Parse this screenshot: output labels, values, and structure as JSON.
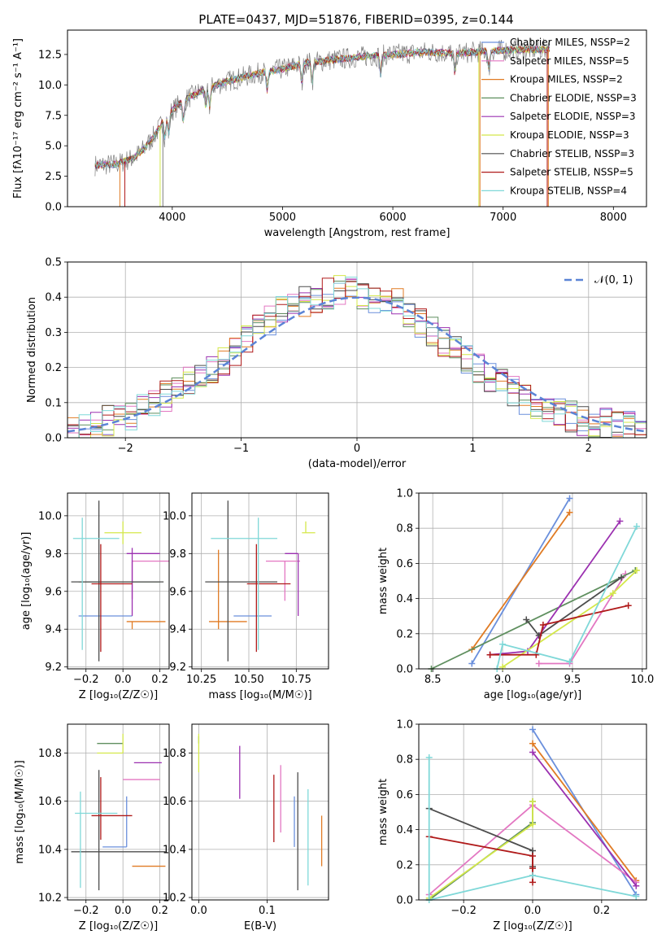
{
  "figure_title": "PLATE=0437, MJD=51876, FIBERID=0395, z=0.144",
  "chart_data": [
    {
      "id": "spectrum",
      "type": "line",
      "xlabel": "wavelength [Angstrom, rest frame]",
      "ylabel": "Flux [f$_\\lambda$10$^{-17}$ erg cm$^{-2}$ s$^{-1}$ A$^{-1}$]",
      "ylabel_text": "Flux [fλ10⁻¹⁷ erg cm⁻² s⁻¹ A⁻¹]",
      "xlim": [
        3050,
        8300
      ],
      "ylim": [
        0,
        14.5
      ],
      "xticks": [
        4000,
        5000,
        6000,
        7000,
        8000
      ],
      "yticks": [
        0.0,
        2.5,
        5.0,
        7.5,
        10.0,
        12.5
      ],
      "legend_loc": "right",
      "observed_color": "#7f7f7f",
      "continuum": {
        "x": [
          3300,
          3500,
          3650,
          3750,
          3850,
          3950,
          4100,
          4300,
          4500,
          4800,
          5000,
          5200,
          5400,
          5700,
          6000,
          6300,
          6600,
          6900,
          7200,
          7400
        ],
        "y": [
          3.4,
          3.5,
          4.0,
          4.8,
          6.0,
          7.5,
          8.7,
          9.7,
          10.3,
          11.0,
          11.3,
          11.8,
          12.0,
          12.3,
          12.5,
          12.7,
          12.6,
          12.8,
          12.9,
          12.9
        ]
      },
      "series": [
        {
          "name": "Chabrier MILES, N$_{SSP}$=2",
          "label": "Chabrier MILES, NSSP=2",
          "color": "#6a8fdc"
        },
        {
          "name": "Salpeter MILES, N$_{SSP}$=5",
          "label": "Salpeter MILES, NSSP=5",
          "color": "#e377c2"
        },
        {
          "name": "Kroupa MILES, N$_{SSP}$=2",
          "label": "Kroupa MILES, NSSP=2",
          "color": "#e07b24"
        },
        {
          "name": "Chabrier ELODIE, N$_{SSP}$=3",
          "label": "Chabrier ELODIE, NSSP=3",
          "color": "#5f8f5f"
        },
        {
          "name": "Salpeter ELODIE, N$_{SSP}$=3",
          "label": "Salpeter ELODIE, NSSP=3",
          "color": "#9b30b0"
        },
        {
          "name": "Kroupa ELODIE, N$_{SSP}$=3",
          "label": "Kroupa ELODIE, NSSP=3",
          "color": "#d4e84a"
        },
        {
          "name": "Chabrier STELIB, N$_{SSP}$=3",
          "label": "Chabrier STELIB, NSSP=3",
          "color": "#4d4d4d"
        },
        {
          "name": "Salpeter STELIB, N$_{SSP}$=5",
          "label": "Salpeter STELIB, NSSP=5",
          "color": "#b01a1a"
        },
        {
          "name": "Kroupa STELIB, N$_{SSP}$=4",
          "label": "Kroupa STELIB, NSSP=4",
          "color": "#7fd8d8"
        }
      ]
    },
    {
      "id": "residuals",
      "type": "histogram",
      "xlabel": "(data-model)/error",
      "ylabel": "Normed distribution",
      "xlim": [
        -2.5,
        2.5
      ],
      "ylim": [
        0,
        0.5
      ],
      "xticks": [
        -2,
        -1,
        0,
        1,
        2
      ],
      "xticklabels": [
        "−2",
        "−1",
        "0",
        "1",
        "2"
      ],
      "yticks": [
        0.0,
        0.1,
        0.2,
        0.3,
        0.4,
        0.5
      ],
      "bin_width": 0.1,
      "bin_start": -2.5,
      "bins": 50,
      "grid": true,
      "reference_curve": {
        "name": "$\\mathcal{N}(0,1)$",
        "label": "𝒩(0, 1)",
        "color": "#5b84d6",
        "style": "dashed"
      },
      "legend_loc": "upper right",
      "approx_mean_hist": [
        0.02,
        0.03,
        0.04,
        0.05,
        0.05,
        0.06,
        0.08,
        0.1,
        0.12,
        0.14,
        0.16,
        0.18,
        0.2,
        0.22,
        0.25,
        0.28,
        0.31,
        0.33,
        0.36,
        0.38,
        0.39,
        0.4,
        0.41,
        0.42,
        0.42,
        0.41,
        0.4,
        0.39,
        0.38,
        0.36,
        0.33,
        0.3,
        0.27,
        0.25,
        0.22,
        0.2,
        0.17,
        0.15,
        0.13,
        0.11,
        0.09,
        0.08,
        0.07,
        0.06,
        0.05,
        0.04,
        0.04,
        0.03,
        0.03,
        0.02
      ]
    },
    {
      "id": "age_vs_Z",
      "type": "errorbar",
      "xlabel": "Z [log$_{10}$(Z/Z$_\\odot$)]",
      "xlabel_text": "Z [log₁₀(Z/Z☉)]",
      "ylabel": "age  [log$_{10}$(age/yr)]",
      "ylabel_text": "age  [log₁₀(age/yr)]",
      "xlim": [
        -0.3,
        0.25
      ],
      "ylim": [
        9.19,
        10.12
      ],
      "xticks": [
        -0.2,
        0.0,
        0.2
      ],
      "xticklabels": [
        "−0.2",
        "0.0",
        "0.2"
      ],
      "yticks": [
        9.2,
        9.4,
        9.6,
        9.8,
        10.0
      ],
      "points": [
        {
          "color": "#6a8fdc",
          "x": 0.02,
          "xerr": [
            0.26,
            0.03
          ],
          "y": 9.47,
          "yerr": [
            0.0,
            0.0
          ]
        },
        {
          "color": "#e377c2",
          "x": 0.05,
          "xerr": [
            0.0,
            0.2
          ],
          "y": 9.76,
          "yerr": [
            0.2,
            0.0
          ]
        },
        {
          "color": "#e07b24",
          "x": 0.05,
          "xerr": [
            0.03,
            0.18
          ],
          "y": 9.44,
          "yerr": [
            0.04,
            0.0
          ]
        },
        {
          "color": "#5f8f5f",
          "x": 0.0,
          "xerr": [
            0.24,
            0.2
          ],
          "y": 9.65,
          "yerr": [
            0.0,
            0.0
          ]
        },
        {
          "color": "#9b30b0",
          "x": 0.05,
          "xerr": [
            0.03,
            0.15
          ],
          "y": 9.8,
          "yerr": [
            0.33,
            0.03
          ]
        },
        {
          "color": "#d4e84a",
          "x": 0.0,
          "xerr": [
            0.1,
            0.1
          ],
          "y": 9.91,
          "yerr": [
            0.06,
            0.06
          ]
        },
        {
          "color": "#4d4d4d",
          "x": -0.13,
          "xerr": [
            0.15,
            0.35
          ],
          "y": 9.65,
          "yerr": [
            0.42,
            0.43
          ]
        },
        {
          "color": "#b01a1a",
          "x": -0.12,
          "xerr": [
            0.05,
            0.17
          ],
          "y": 9.64,
          "yerr": [
            0.36,
            0.21
          ]
        },
        {
          "color": "#7fd8d8",
          "x": -0.22,
          "xerr": [
            0.05,
            0.2
          ],
          "y": 9.88,
          "yerr": [
            0.59,
            0.11
          ]
        }
      ]
    },
    {
      "id": "age_vs_mass",
      "type": "errorbar",
      "xlabel": "mass [log$_{10}$(M/M$_\\odot$)]",
      "xlabel_text": "mass [log₁₀(M/M☉)]",
      "ylabel": "",
      "xlim": [
        10.2,
        10.92
      ],
      "ylim": [
        9.19,
        10.12
      ],
      "xticks": [
        10.25,
        10.5,
        10.75
      ],
      "xticklabels": [
        "10.25",
        "10.50",
        "10.75"
      ],
      "yticks": [
        9.2,
        9.4,
        9.6,
        9.8,
        10.0
      ],
      "points": [
        {
          "color": "#6a8fdc",
          "x": 10.42,
          "xerr": [
            0.0,
            0.2
          ],
          "y": 9.47,
          "yerr": [
            0.0,
            0.0
          ]
        },
        {
          "color": "#e377c2",
          "x": 10.69,
          "xerr": [
            0.1,
            0.08
          ],
          "y": 9.76,
          "yerr": [
            0.21,
            0.0
          ]
        },
        {
          "color": "#e07b24",
          "x": 10.34,
          "xerr": [
            0.05,
            0.15
          ],
          "y": 9.44,
          "yerr": [
            0.04,
            0.38
          ]
        },
        {
          "color": "#5f8f5f",
          "x": 10.84,
          "xerr": [
            0.0,
            0.0
          ],
          "y": 9.91,
          "yerr": [
            0.0,
            0.0
          ]
        },
        {
          "color": "#9b30b0",
          "x": 10.76,
          "xerr": [
            0.07,
            0.0
          ],
          "y": 9.8,
          "yerr": [
            0.33,
            0.0
          ]
        },
        {
          "color": "#d4e84a",
          "x": 10.8,
          "xerr": [
            0.02,
            0.05
          ],
          "y": 9.91,
          "yerr": [
            0.0,
            0.06
          ]
        },
        {
          "color": "#4d4d4d",
          "x": 10.39,
          "xerr": [
            0.12,
            0.26
          ],
          "y": 9.65,
          "yerr": [
            0.42,
            0.43
          ]
        },
        {
          "color": "#b01a1a",
          "x": 10.54,
          "xerr": [
            0.05,
            0.18
          ],
          "y": 9.64,
          "yerr": [
            0.36,
            0.21
          ]
        },
        {
          "color": "#7fd8d8",
          "x": 10.55,
          "xerr": [
            0.25,
            0.1
          ],
          "y": 9.88,
          "yerr": [
            0.59,
            0.11
          ]
        }
      ]
    },
    {
      "id": "weight_vs_age",
      "type": "line",
      "xlabel": "age  [log$_{10}$(age/yr)]",
      "xlabel_text": "age  [log₁₀(age/yr)]",
      "ylabel": "mass weight",
      "xlim": [
        8.4,
        10.03
      ],
      "ylim": [
        0,
        1.0
      ],
      "xticks": [
        8.5,
        9.0,
        9.5,
        10.0
      ],
      "yticks": [
        0.0,
        0.2,
        0.4,
        0.6,
        0.8,
        1.0
      ],
      "series": [
        {
          "color": "#6a8fdc",
          "x": [
            8.78,
            9.48
          ],
          "y": [
            0.03,
            0.97
          ]
        },
        {
          "color": "#e07b24",
          "x": [
            8.78,
            9.48
          ],
          "y": [
            0.11,
            0.89
          ]
        },
        {
          "color": "#e377c2",
          "x": [
            9.26,
            9.48,
            9.88
          ],
          "y": [
            0.03,
            0.03,
            0.54
          ]
        },
        {
          "color": "#5f8f5f",
          "x": [
            8.49,
            9.95
          ],
          "y": [
            0.0,
            0.56
          ]
        },
        {
          "color": "#9b30b0",
          "x": [
            8.91,
            9.18,
            9.84
          ],
          "y": [
            0.08,
            0.1,
            0.84
          ]
        },
        {
          "color": "#d4e84a",
          "x": [
            9.0,
            9.79,
            9.96
          ],
          "y": [
            0.01,
            0.43,
            0.56
          ]
        },
        {
          "color": "#4d4d4d",
          "x": [
            9.17,
            9.26,
            9.85
          ],
          "y": [
            0.28,
            0.19,
            0.52
          ]
        },
        {
          "color": "#b01a1a",
          "x": [
            8.91,
            9.24,
            9.29,
            9.9
          ],
          "y": [
            0.08,
            0.08,
            0.25,
            0.36
          ]
        },
        {
          "color": "#7fd8d8",
          "x": [
            8.96,
            9.0,
            9.48,
            9.96
          ],
          "y": [
            0.0,
            0.14,
            0.04,
            0.81
          ]
        }
      ]
    },
    {
      "id": "mass_vs_Z",
      "type": "errorbar",
      "xlabel": "Z [log$_{10}$(Z/Z$_\\odot$)]",
      "xlabel_text": "Z [log₁₀(Z/Z☉)]",
      "ylabel": "mass [log$_{10}$(M/M$_\\odot$)]",
      "ylabel_text": "mass [log₁₀(M/M☉)]",
      "xlim": [
        -0.3,
        0.25
      ],
      "ylim": [
        10.19,
        10.92
      ],
      "xticks": [
        -0.2,
        0.0,
        0.2
      ],
      "xticklabels": [
        "−0.2",
        "0.0",
        "0.2"
      ],
      "yticks": [
        10.2,
        10.4,
        10.6,
        10.8
      ],
      "points": [
        {
          "color": "#6a8fdc",
          "x": 0.02,
          "xerr": [
            0.13,
            0.0
          ],
          "y": 10.41,
          "yerr": [
            0.0,
            0.21
          ]
        },
        {
          "color": "#e377c2",
          "x": 0.0,
          "xerr": [
            0.0,
            0.2
          ],
          "y": 10.69,
          "yerr": [
            0.0,
            0.0
          ]
        },
        {
          "color": "#e07b24",
          "x": 0.05,
          "xerr": [
            0.0,
            0.18
          ],
          "y": 10.33,
          "yerr": [
            0.0,
            0.0
          ]
        },
        {
          "color": "#5f8f5f",
          "x": 0.0,
          "xerr": [
            0.14,
            0.0
          ],
          "y": 10.84,
          "yerr": [
            0.0,
            0.0
          ]
        },
        {
          "color": "#9b30b0",
          "x": 0.06,
          "xerr": [
            0.0,
            0.15
          ],
          "y": 10.76,
          "yerr": [
            0.0,
            0.0
          ]
        },
        {
          "color": "#d4e84a",
          "x": 0.0,
          "xerr": [
            0.14,
            0.0
          ],
          "y": 10.8,
          "yerr": [
            0.0,
            0.08
          ]
        },
        {
          "color": "#4d4d4d",
          "x": -0.13,
          "xerr": [
            0.15,
            0.36
          ],
          "y": 10.39,
          "yerr": [
            0.16,
            0.34
          ]
        },
        {
          "color": "#b01a1a",
          "x": -0.12,
          "xerr": [
            0.05,
            0.17
          ],
          "y": 10.54,
          "yerr": [
            0.1,
            0.16
          ]
        },
        {
          "color": "#7fd8d8",
          "x": -0.23,
          "xerr": [
            0.03,
            0.2
          ],
          "y": 10.55,
          "yerr": [
            0.31,
            0.09
          ]
        }
      ]
    },
    {
      "id": "mass_vs_ebv",
      "type": "errorbar",
      "xlabel": "E(B-V)",
      "ylabel": "",
      "xlim": [
        -0.01,
        0.19
      ],
      "ylim": [
        10.19,
        10.92
      ],
      "xticks": [
        0.0,
        0.1
      ],
      "xticklabels": [
        "0.0",
        "0.1"
      ],
      "yticks": [
        10.2,
        10.4,
        10.6,
        10.8
      ],
      "points": [
        {
          "color": "#6a8fdc",
          "x": 0.14,
          "xerr": [
            0,
            0
          ],
          "y": 10.41,
          "yerr": [
            0.0,
            0.21
          ]
        },
        {
          "color": "#e377c2",
          "x": 0.12,
          "xerr": [
            0,
            0
          ],
          "y": 10.61,
          "yerr": [
            0.14,
            0.14
          ]
        },
        {
          "color": "#e07b24",
          "x": 0.18,
          "xerr": [
            0,
            0
          ],
          "y": 10.43,
          "yerr": [
            0.1,
            0.11
          ]
        },
        {
          "color": "#5f8f5f",
          "x": 0.0,
          "xerr": [
            0,
            0
          ],
          "y": 10.84,
          "yerr": [
            0.0,
            0.03
          ]
        },
        {
          "color": "#9b30b0",
          "x": 0.06,
          "xerr": [
            0,
            0
          ],
          "y": 10.72,
          "yerr": [
            0.11,
            0.11
          ]
        },
        {
          "color": "#d4e84a",
          "x": 0.0,
          "xerr": [
            0,
            0
          ],
          "y": 10.8,
          "yerr": [
            0.08,
            0.08
          ]
        },
        {
          "color": "#4d4d4d",
          "x": 0.145,
          "xerr": [
            0,
            0
          ],
          "y": 10.52,
          "yerr": [
            0.29,
            0.2
          ]
        },
        {
          "color": "#b01a1a",
          "x": 0.11,
          "xerr": [
            0,
            0
          ],
          "y": 10.57,
          "yerr": [
            0.14,
            0.14
          ]
        },
        {
          "color": "#7fd8d8",
          "x": 0.16,
          "xerr": [
            0,
            0
          ],
          "y": 10.47,
          "yerr": [
            0.22,
            0.18
          ]
        }
      ]
    },
    {
      "id": "weight_vs_Z",
      "type": "line",
      "xlabel": "Z [log$_{10}$(Z/Z$_\\odot$)]",
      "xlabel_text": "Z [log₁₀(Z/Z☉)]",
      "ylabel": "mass weight",
      "xlim": [
        -0.33,
        0.33
      ],
      "ylim": [
        0,
        1.0
      ],
      "xticks": [
        -0.2,
        0.0,
        0.2
      ],
      "xticklabels": [
        "−0.2",
        "0.0",
        "0.2"
      ],
      "yticks": [
        0.0,
        0.2,
        0.4,
        0.6,
        0.8,
        1.0
      ],
      "series": [
        {
          "color": "#6a8fdc",
          "x": [
            0.0,
            0.3
          ],
          "y": [
            0.97,
            0.03
          ]
        },
        {
          "color": "#e07b24",
          "x": [
            0.0,
            0.3
          ],
          "y": [
            0.89,
            0.11
          ]
        },
        {
          "color": "#e377c2",
          "x": [
            -0.3,
            0.0,
            0.3
          ],
          "y": [
            0.03,
            0.54,
            0.1
          ]
        },
        {
          "color": "#5f8f5f",
          "x": [
            -0.3,
            0.0,
            0.0
          ],
          "y": [
            0.0,
            0.44,
            0.56
          ]
        },
        {
          "color": "#9b30b0",
          "x": [
            0.0,
            0.3
          ],
          "y": [
            0.84,
            0.08
          ]
        },
        {
          "color": "#d4e84a",
          "x": [
            -0.3,
            0.0,
            0.0
          ],
          "y": [
            0.01,
            0.43,
            0.56
          ]
        },
        {
          "color": "#4d4d4d",
          "x": [
            -0.3,
            0.0,
            0.0
          ],
          "y": [
            0.52,
            0.28,
            0.19
          ]
        },
        {
          "color": "#b01a1a",
          "x": [
            -0.3,
            0.0,
            0.0,
            0.0
          ],
          "y": [
            0.36,
            0.25,
            0.18,
            0.1
          ]
        },
        {
          "color": "#7fd8d8",
          "x": [
            -0.3,
            -0.3,
            0.0,
            0.3
          ],
          "y": [
            0.81,
            0.0,
            0.14,
            0.02
          ]
        }
      ]
    }
  ]
}
